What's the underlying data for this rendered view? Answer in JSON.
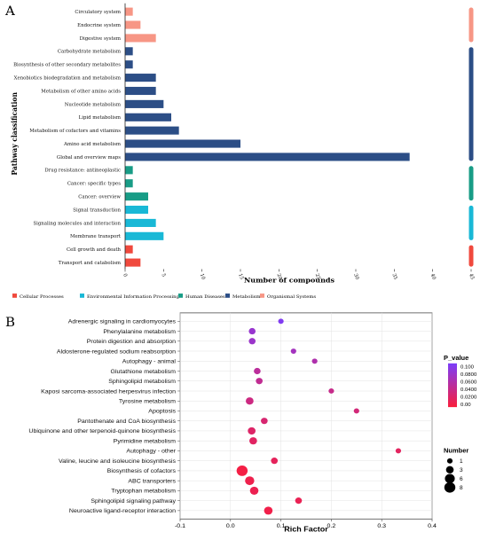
{
  "chart_data": [
    {
      "panel_label": "A",
      "type": "bar",
      "orientation": "horizontal",
      "ylabel": "Pathway classification",
      "xlabel": "Number of compounds",
      "xlim": [
        0,
        45
      ],
      "xticks": [
        "0",
        "5",
        "10",
        "15",
        "20",
        "25",
        "30",
        "35",
        "40",
        "45"
      ],
      "legend_placement": "bottom",
      "groups": [
        {
          "name": "Cellular Processes",
          "color": "#f0493d"
        },
        {
          "name": "Environmental Information Processing",
          "color": "#19b8d6"
        },
        {
          "name": "Human Diseases",
          "color": "#189c86"
        },
        {
          "name": "Metabolism",
          "color": "#2c4e86"
        },
        {
          "name": "Organismal Systems",
          "color": "#f79685"
        }
      ],
      "bars": [
        {
          "label": "Circulatory system",
          "value": 1,
          "group": 4
        },
        {
          "label": "Endocrine system",
          "value": 2,
          "group": 4
        },
        {
          "label": "Digestive system",
          "value": 4,
          "group": 4
        },
        {
          "label": "Carbohydrate metabolism",
          "value": 1,
          "group": 3
        },
        {
          "label": "Biosynthesis of other secondary metabolites",
          "value": 1,
          "group": 3
        },
        {
          "label": "Xenobiotics biodegradation and metabolism",
          "value": 4,
          "group": 3
        },
        {
          "label": "Metabolism of other amino acids",
          "value": 4,
          "group": 3
        },
        {
          "label": "Nucleotide metabolism",
          "value": 5,
          "group": 3
        },
        {
          "label": "Lipid metabolism",
          "value": 6,
          "group": 3
        },
        {
          "label": "Metabolism of cofactors and vitamins",
          "value": 7,
          "group": 3
        },
        {
          "label": "Amino acid metabolism",
          "value": 15,
          "group": 3
        },
        {
          "label": "Global and overview maps",
          "value": 37,
          "group": 3
        },
        {
          "label": "Drug resistance: antineoplastic",
          "value": 1,
          "group": 2
        },
        {
          "label": "Cancer: specific types",
          "value": 1,
          "group": 2
        },
        {
          "label": "Cancer: overview",
          "value": 3,
          "group": 2
        },
        {
          "label": "Signal transduction",
          "value": 3,
          "group": 1
        },
        {
          "label": "Signaling molecules and interaction",
          "value": 4,
          "group": 1
        },
        {
          "label": "Membrane transport",
          "value": 5,
          "group": 1
        },
        {
          "label": "Cell growth and death",
          "value": 1,
          "group": 0
        },
        {
          "label": "Transport and catabolism",
          "value": 2,
          "group": 0
        }
      ]
    },
    {
      "panel_label": "B",
      "type": "scatter",
      "subtype": "bubble",
      "xlabel": "Rich Factor",
      "ylabel": "",
      "xlim": [
        -0.1,
        0.4
      ],
      "xticks": [
        "-0.1",
        "0.0",
        "0.1",
        "0.2",
        "0.3",
        "0.4"
      ],
      "grid": true,
      "color_legend_title": "P_value",
      "color_legend_ticks": [
        "0.100",
        "0.0800",
        "0.0600",
        "0.0400",
        "0.0200",
        "0.00"
      ],
      "color_range": [
        0,
        0.11
      ],
      "color_low": "#fa1e3c",
      "color_high": "#7b3dfa",
      "size_legend_title": "Number",
      "size_legend_values": [
        "1",
        "3",
        "6",
        "8"
      ],
      "points": [
        {
          "label": "Adrenergic signaling in cardiomyocytes",
          "x": 0.1,
          "number": 1,
          "p": 0.105
        },
        {
          "label": "Phenylalanine metabolism",
          "x": 0.043,
          "number": 2,
          "p": 0.085
        },
        {
          "label": "Protein digestion and absorption",
          "x": 0.043,
          "number": 2,
          "p": 0.082
        },
        {
          "label": "Aldosterone-regulated sodium reabsorption",
          "x": 0.125,
          "number": 1,
          "p": 0.075
        },
        {
          "label": "Autophagy - animal",
          "x": 0.167,
          "number": 1,
          "p": 0.065
        },
        {
          "label": "Glutathione metabolism",
          "x": 0.053,
          "number": 2,
          "p": 0.055
        },
        {
          "label": "Sphingolipid metabolism",
          "x": 0.057,
          "number": 2,
          "p": 0.05
        },
        {
          "label": "Kaposi sarcoma-associated herpesvirus infection",
          "x": 0.2,
          "number": 1,
          "p": 0.045
        },
        {
          "label": "Tyrosine metabolism",
          "x": 0.038,
          "number": 3,
          "p": 0.04
        },
        {
          "label": "Apoptosis",
          "x": 0.25,
          "number": 1,
          "p": 0.035
        },
        {
          "label": "Pantothenate and CoA biosynthesis",
          "x": 0.067,
          "number": 2,
          "p": 0.03
        },
        {
          "label": "Ubiquinone and other terpenoid-quinone biosynthesis",
          "x": 0.042,
          "number": 3,
          "p": 0.025
        },
        {
          "label": "Pyrimidine metabolism",
          "x": 0.045,
          "number": 3,
          "p": 0.022
        },
        {
          "label": "Autophagy - other",
          "x": 0.333,
          "number": 1,
          "p": 0.02
        },
        {
          "label": "Valine, leucine and isoleucine biosynthesis",
          "x": 0.087,
          "number": 2,
          "p": 0.018
        },
        {
          "label": "Biosynthesis of cofactors",
          "x": 0.023,
          "number": 8,
          "p": 0.005
        },
        {
          "label": "ABC transporters",
          "x": 0.038,
          "number": 5,
          "p": 0.01
        },
        {
          "label": "Tryptophan metabolism",
          "x": 0.047,
          "number": 4,
          "p": 0.012
        },
        {
          "label": "Sphingolipid signaling pathway",
          "x": 0.135,
          "number": 2,
          "p": 0.014
        },
        {
          "label": "Neuroactive ligand-receptor interaction",
          "x": 0.075,
          "number": 4,
          "p": 0.008
        }
      ]
    }
  ]
}
